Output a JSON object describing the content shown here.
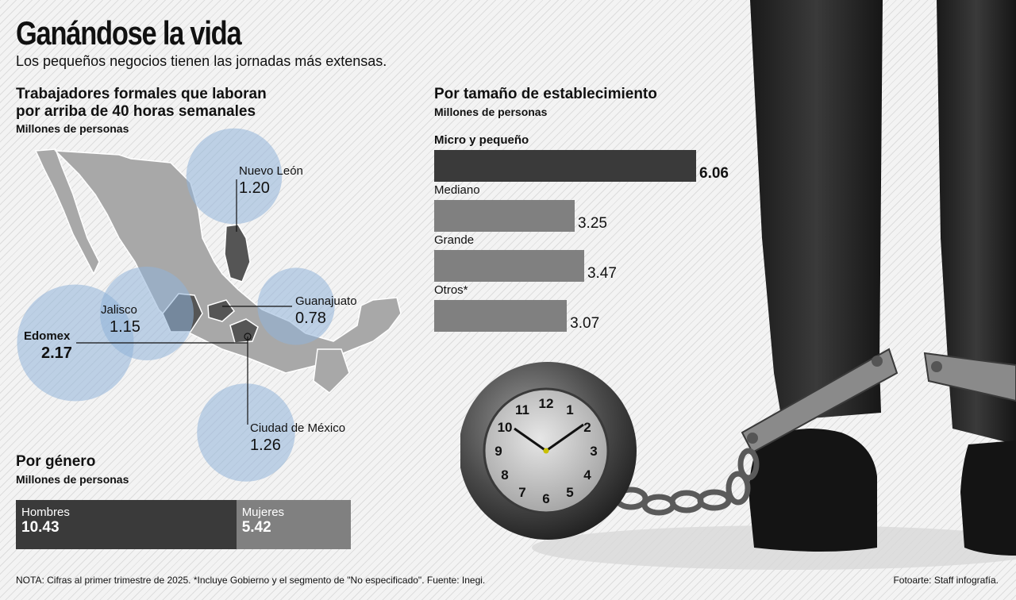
{
  "header": {
    "title": "Ganándose la vida",
    "subtitle": "Los pequeños negocios tienen las jornadas más extensas."
  },
  "map_section": {
    "title_line1": "Trabajadores formales que laboran",
    "title_line2": "por arriba de 40 horas semanales",
    "unit": "Millones de personas"
  },
  "size_section": {
    "title": "Por tamaño de establecimiento",
    "unit": "Millones de personas"
  },
  "gender_section": {
    "title": "Por género",
    "unit": "Millones de personas"
  },
  "footer": {
    "note": "NOTA: Cifras al primer trimestre de 2025. *Incluye Gobierno y  el segmento de \"No especificado\". Fuente: Inegi.",
    "credit": "Fotoarte: Staff infografía."
  },
  "clock_numbers": [
    "12",
    "1",
    "2",
    "3",
    "4",
    "5",
    "6",
    "7",
    "8",
    "9",
    "10",
    "11"
  ],
  "colors": {
    "dark_bar": "#3a3a3a",
    "mid_bar": "#808080",
    "bubble": "#8fb3d9"
  },
  "chart_data": [
    {
      "type": "bar",
      "title": "Por tamaño de establecimiento",
      "ylabel": "Millones de personas",
      "categories": [
        "Micro y pequeño",
        "Mediano",
        "Grande",
        "Otros*"
      ],
      "values": [
        6.06,
        3.25,
        3.47,
        3.07
      ],
      "value_labels": [
        "6.06",
        "3.25",
        "3.47",
        "3.07"
      ]
    },
    {
      "type": "bar",
      "title": "Por género",
      "ylabel": "Millones de personas",
      "categories": [
        "Hombres",
        "Mujeres"
      ],
      "values": [
        10.43,
        5.42
      ],
      "value_labels": [
        "10.43",
        "5.42"
      ]
    },
    {
      "type": "scatter",
      "title": "Trabajadores formales que laboran por arriba de 40 horas semanales",
      "ylabel": "Millones de personas",
      "categories": [
        "Nuevo León",
        "Jalisco",
        "Guanajuato",
        "Edomex",
        "Ciudad de México"
      ],
      "values": [
        1.2,
        1.15,
        0.78,
        2.17,
        1.26
      ],
      "value_labels": [
        "1.20",
        "1.15",
        "0.78",
        "2.17",
        "1.26"
      ]
    }
  ]
}
